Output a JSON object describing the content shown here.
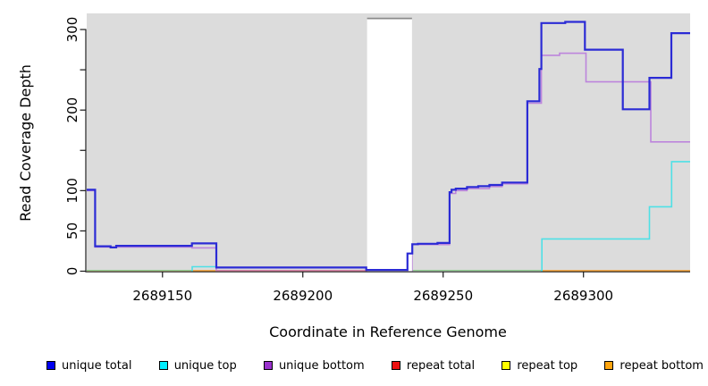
{
  "chart_data": {
    "type": "line",
    "subtype": "step-coverage",
    "title": "",
    "xlabel": "Coordinate in Reference Genome",
    "ylabel": "Read Coverage Depth",
    "xlim": [
      2689123,
      2689338
    ],
    "ylim": [
      0,
      320
    ],
    "grid": false,
    "background": "#dcdcdc",
    "x_ticks": [
      {
        "value": 2689150,
        "label": "2689150"
      },
      {
        "value": 2689200,
        "label": "2689200"
      },
      {
        "value": 2689250,
        "label": "2689250"
      },
      {
        "value": 2689300,
        "label": "2689300"
      }
    ],
    "y_ticks": [
      {
        "value": 0,
        "label": "0"
      },
      {
        "value": 50,
        "label": "50"
      },
      {
        "value": 100,
        "label": "100"
      },
      {
        "value": 150,
        "label": ""
      },
      {
        "value": 200,
        "label": "200"
      },
      {
        "value": 250,
        "label": ""
      },
      {
        "value": 300,
        "label": "300"
      }
    ],
    "gap_region": {
      "x_start": 2689222.9,
      "x_end": 2689238.9,
      "fill": "#ffffff",
      "top_edge_color": "#8a8a8a",
      "note": "white no-coverage band"
    },
    "series": [
      {
        "id": "repeat-bottom-left-edge",
        "color": "#f3c48f",
        "width": 1.3,
        "layer": 1,
        "points": [
          [
            2689123,
            0
          ]
        ],
        "end": 2689160.5
      },
      {
        "id": "top-strand-overlap-left",
        "color": "#8fcd8f",
        "width": 1.3,
        "layer": 1,
        "points": [
          [
            2689123,
            1
          ]
        ],
        "end": 2689160.5
      },
      {
        "id": "top-strand-overlap-mid",
        "color": "#8fcd8f",
        "width": 1.3,
        "layer": 1,
        "points": [
          [
            2689238.9,
            1
          ]
        ],
        "end": 2689285
      },
      {
        "id": "repeat-bottom-left",
        "color": "#f59c28",
        "width": 1.6,
        "layer": 1,
        "points": [
          [
            2689160.4,
            0.4
          ]
        ],
        "end": 2689169.4
      },
      {
        "id": "repeat-bottom-right",
        "color": "#f59c28",
        "width": 1.6,
        "layer": 1,
        "points": [
          [
            2689285,
            0.4
          ]
        ],
        "end": 2689338
      },
      {
        "id": "unique-top-left",
        "color": "#4fe0e6",
        "width": 1.6,
        "layer": 1,
        "points": [
          [
            2689160.3,
            0.5
          ],
          [
            2689160.6,
            5.5
          ]
        ],
        "end": 2689169.4
      },
      {
        "id": "unique-bottom",
        "color": "#bd85dc",
        "width": 1.6,
        "layer": 1,
        "points": [
          [
            2689123,
            100
          ],
          [
            2689126,
            30
          ],
          [
            2689160.5,
            29
          ],
          [
            2689169.2,
            0.8
          ],
          [
            2689222.6,
            0.4
          ],
          [
            2689238.9,
            33
          ],
          [
            2689252.3,
            96.5
          ],
          [
            2689254.5,
            100
          ],
          [
            2689258.5,
            102.5
          ],
          [
            2689266.5,
            105
          ],
          [
            2689271,
            108.5
          ],
          [
            2689280,
            208.5
          ],
          [
            2689285,
            268
          ],
          [
            2689291.5,
            270.5
          ],
          [
            2689300.9,
            235
          ],
          [
            2689324,
            160.5
          ]
        ],
        "end": 2689338
      },
      {
        "id": "repeat-total",
        "color": "#e0839a",
        "width": 1.4,
        "layer": 1,
        "points": [
          [
            2689169.2,
            0.6
          ]
        ],
        "end": 2689222.9
      },
      {
        "id": "unique-top",
        "color": "#4fe0e6",
        "width": 1.6,
        "layer": 2,
        "points": [
          [
            2689284.8,
            0.5
          ],
          [
            2689285.2,
            40
          ],
          [
            2689323.5,
            80
          ],
          [
            2689331.4,
            136
          ]
        ],
        "end": 2689338
      },
      {
        "id": "unique-total",
        "color": "#2b2bd5",
        "width": 2.2,
        "layer": 2,
        "points": [
          [
            2689123,
            101
          ],
          [
            2689126,
            31
          ],
          [
            2689131.5,
            29.5
          ],
          [
            2689133.5,
            31.5
          ],
          [
            2689160.5,
            34.5
          ],
          [
            2689169.2,
            4.5
          ],
          [
            2689222.6,
            1.5
          ],
          [
            2689237.3,
            22
          ],
          [
            2689239,
            33.5
          ],
          [
            2689241,
            34
          ],
          [
            2689248,
            35
          ],
          [
            2689252.3,
            98
          ],
          [
            2689253,
            101
          ],
          [
            2689254.5,
            102.5
          ],
          [
            2689258.5,
            104.5
          ],
          [
            2689262.5,
            105.5
          ],
          [
            2689266.5,
            107
          ],
          [
            2689271,
            110
          ],
          [
            2689280,
            211
          ],
          [
            2689284.3,
            251
          ],
          [
            2689285,
            308
          ],
          [
            2689293.5,
            309.5
          ],
          [
            2689300.5,
            275
          ],
          [
            2689314,
            201
          ],
          [
            2689323.5,
            240
          ],
          [
            2689331.3,
            295.5
          ]
        ],
        "end": 2689338
      }
    ],
    "legend": [
      {
        "label": "unique total",
        "color": "#0000f0"
      },
      {
        "label": "unique top",
        "color": "#00eeff"
      },
      {
        "label": "unique bottom",
        "color": "#9a32cd"
      },
      {
        "label": "repeat total",
        "color": "#ee1111"
      },
      {
        "label": "repeat top",
        "color": "#ffff00"
      },
      {
        "label": "repeat bottom",
        "color": "#ffa50f"
      }
    ],
    "legend_position": "bottom"
  }
}
